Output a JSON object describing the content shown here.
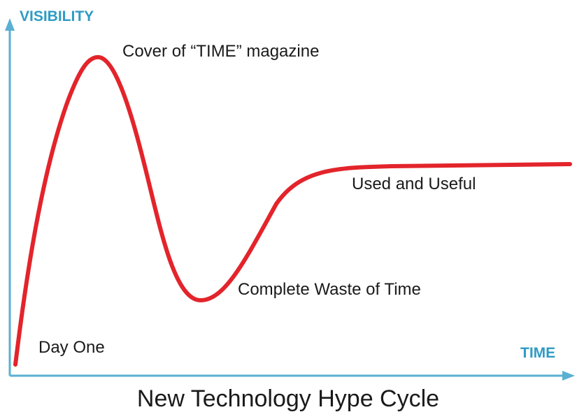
{
  "axes": {
    "y_label": "VISIBILITY",
    "x_label": "TIME"
  },
  "annotations": [
    "Cover of “TIME” magazine",
    "Used and Useful",
    "Complete Waste of Time",
    "Day One"
  ],
  "title": "New Technology Hype Cycle"
}
